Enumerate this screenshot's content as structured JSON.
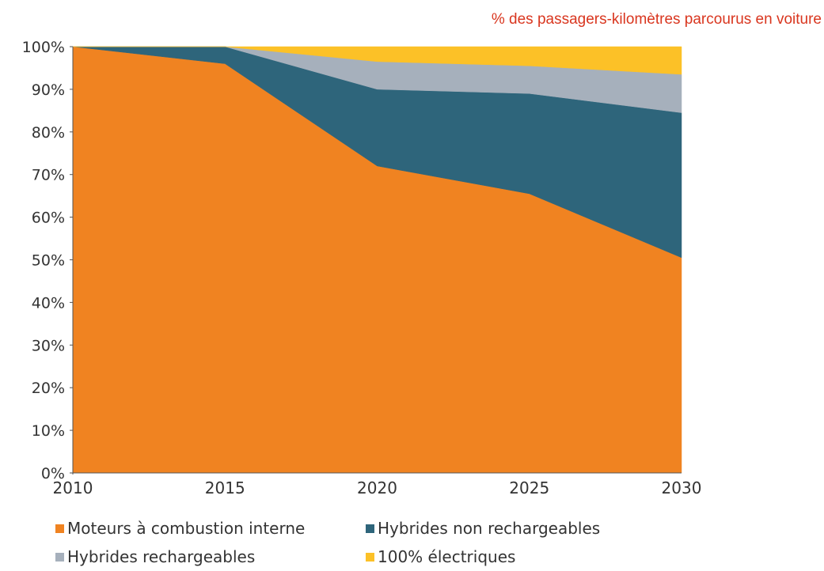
{
  "unit_note": "% des passagers-kilomètres parcourus en voiture",
  "chart_data": {
    "type": "area",
    "stacked": true,
    "title": "",
    "x": [
      "2010",
      "2015",
      "2020",
      "2025",
      "2030"
    ],
    "y_ticks": [
      "0%",
      "10%",
      "20%",
      "30%",
      "40%",
      "50%",
      "60%",
      "70%",
      "80%",
      "90%",
      "100%"
    ],
    "ylim": [
      0,
      100
    ],
    "legend_placement": "bottom",
    "series": [
      {
        "name": "Moteurs à combustion interne",
        "color": "#f08321",
        "values": [
          100,
          96,
          72,
          65.5,
          50.5
        ]
      },
      {
        "name": "Hybrides non rechargeables",
        "color": "#2e657b",
        "values": [
          0,
          4,
          18,
          23.5,
          34
        ]
      },
      {
        "name": "Hybrides rechargeables",
        "color": "#a6b0bc",
        "values": [
          0,
          0,
          6.5,
          6.5,
          9
        ]
      },
      {
        "name": "100% électriques",
        "color": "#fcc127",
        "values": [
          0,
          0,
          3.5,
          4.5,
          6.5
        ]
      }
    ]
  }
}
